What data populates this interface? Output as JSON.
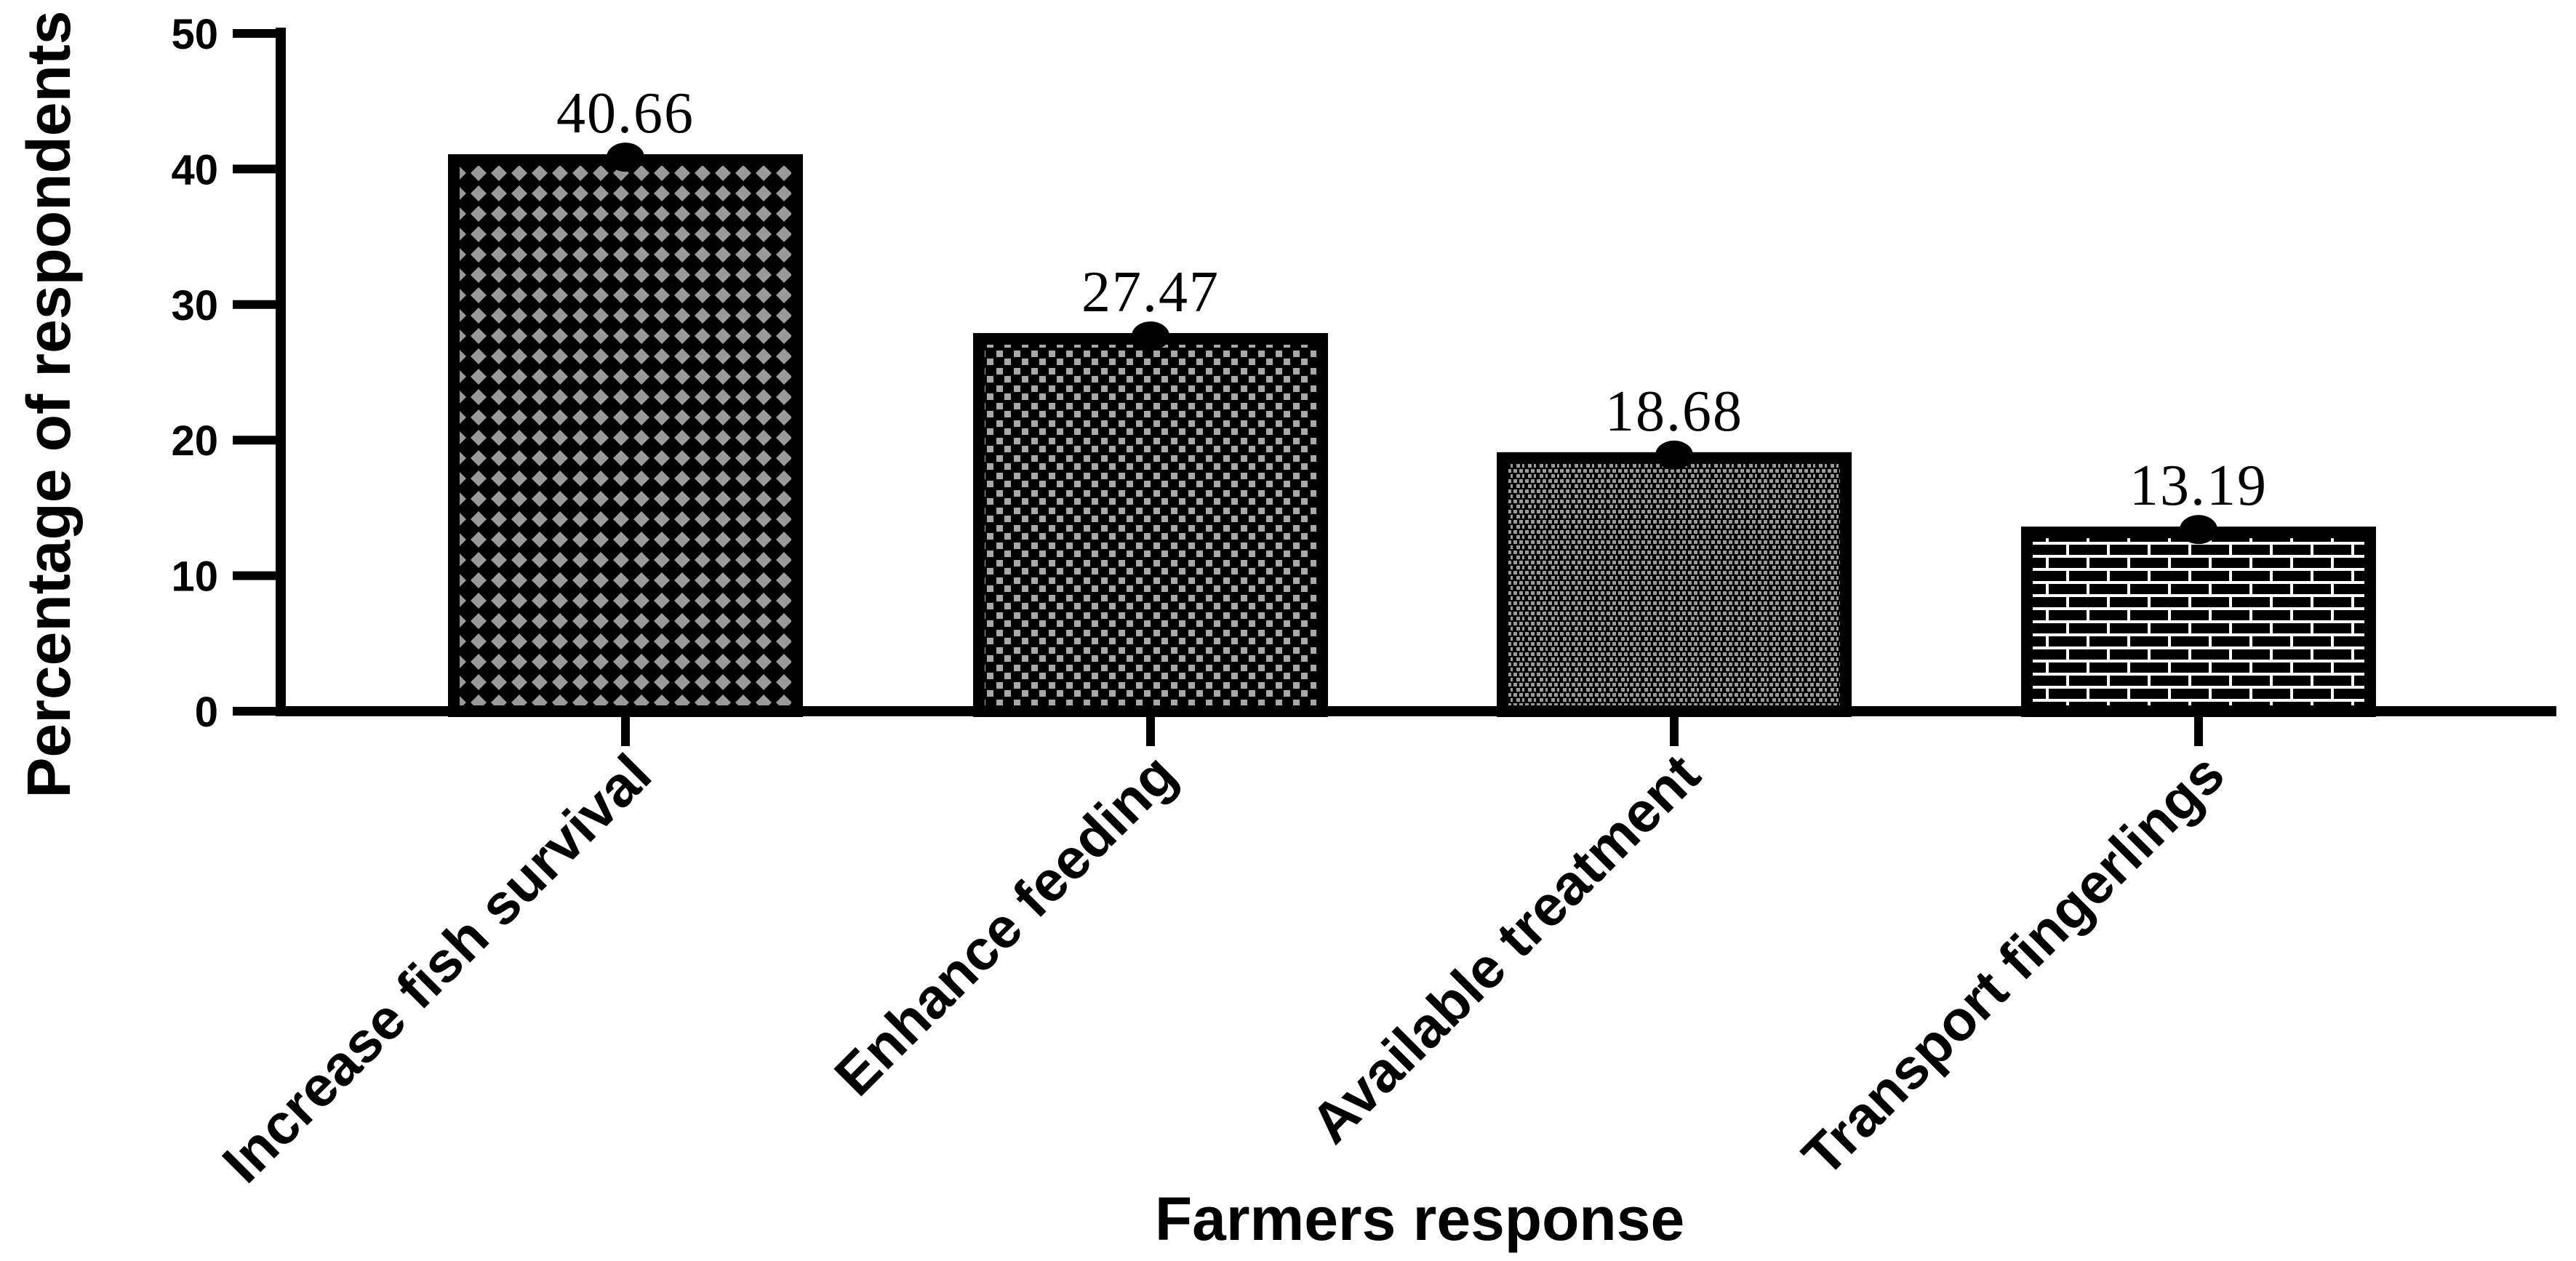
{
  "chart_data": {
    "type": "bar",
    "categories": [
      "Increase fish survival",
      "Enhance feeding",
      "Available treatment",
      "Transport fingerlings"
    ],
    "values": [
      40.66,
      27.47,
      18.68,
      13.19
    ],
    "data_labels": [
      "40.66",
      "27.47",
      "18.68",
      "13.19"
    ],
    "patterns": [
      "diamond-crosshatch",
      "checkerboard",
      "fine-brick",
      "brick"
    ],
    "xlabel": "Farmers response",
    "ylabel": "Percentage of respondents",
    "ylim": [
      0,
      50
    ],
    "yticks": [
      0,
      10,
      20,
      30,
      40,
      50
    ],
    "grid": false,
    "legend": "none",
    "colors": {
      "bar_fill": "#000000",
      "pattern": "#9a9a9a",
      "pattern_light": "#ffffff"
    }
  }
}
